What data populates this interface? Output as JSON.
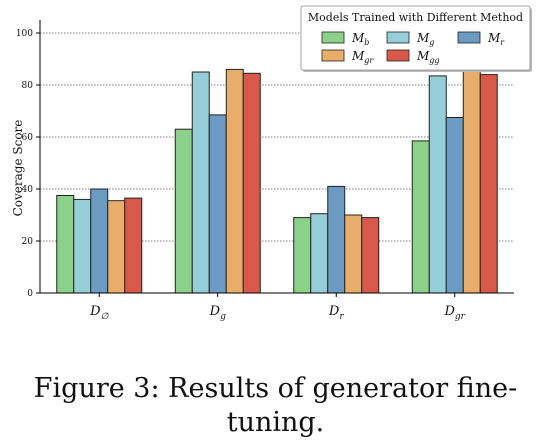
{
  "chart_data": {
    "type": "bar",
    "ylabel": "Coverage Score",
    "ylim": [
      0,
      105
    ],
    "yticks": [
      0,
      20,
      40,
      60,
      80,
      100
    ],
    "grid": "horizontal-dotted",
    "legend_placement": "top-right",
    "legend_title": "Models Trained with Different Method",
    "categories": [
      {
        "base": "D",
        "sub": "∅"
      },
      {
        "base": "D",
        "sub": "g"
      },
      {
        "base": "D",
        "sub": "r"
      },
      {
        "base": "D",
        "sub": "gr"
      }
    ],
    "series": [
      {
        "name": {
          "base": "M",
          "sub": "b"
        },
        "color": "#8cd18a",
        "values": [
          37.5,
          63,
          29,
          58.5
        ]
      },
      {
        "name": {
          "base": "M",
          "sub": "g"
        },
        "color": "#95cdd8",
        "values": [
          36,
          85,
          30.5,
          83.5
        ]
      },
      {
        "name": {
          "base": "M",
          "sub": "r"
        },
        "color": "#6b9bc3",
        "values": [
          40,
          68.5,
          41,
          67.5
        ]
      },
      {
        "name": {
          "base": "M",
          "sub": "gr"
        },
        "color": "#e9ad6a",
        "values": [
          35.5,
          86,
          30,
          85.5
        ]
      },
      {
        "name": {
          "base": "M",
          "sub": "gg"
        },
        "color": "#d8594a",
        "values": [
          36.5,
          84.5,
          29,
          84
        ]
      }
    ]
  },
  "caption": "Figure 3: Results of generator fine-tuning."
}
